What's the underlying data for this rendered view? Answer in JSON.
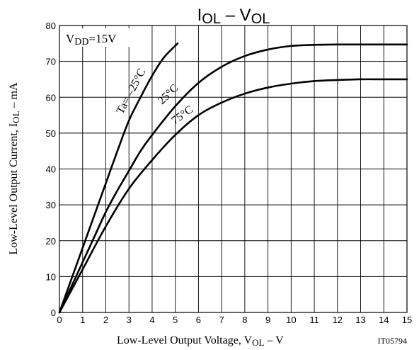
{
  "title": {
    "main": "I",
    "sub_1": "OL",
    "dash": " – V",
    "sub_2": "OL"
  },
  "y_axis_label": {
    "pre": "Low-Level Output Current, I",
    "sub": "OL",
    "post": " – mA"
  },
  "x_axis_label": {
    "pre": "Low-Level Output Voltage, V",
    "sub": "OL",
    "post": " – V"
  },
  "figure_code": "IT05794",
  "vdd_label": {
    "pre": "V",
    "sub": "DD",
    "post": "=15V"
  },
  "curve_labels": [
    "Ta= –25°C",
    "25°C",
    "75°C"
  ],
  "colors": {
    "line": "#000000",
    "grid": "#000000",
    "background": "#ffffff"
  },
  "chart_data": {
    "type": "line",
    "xlabel": "Low-Level Output Voltage, VOL – V",
    "ylabel": "Low-Level Output Current, IOL – mA",
    "xlim": [
      0,
      15
    ],
    "ylim": [
      0,
      80
    ],
    "x_ticks": [
      0,
      1,
      2,
      3,
      4,
      5,
      6,
      7,
      8,
      9,
      10,
      11,
      12,
      13,
      14,
      15
    ],
    "y_ticks": [
      0,
      10,
      20,
      30,
      40,
      50,
      60,
      70,
      80
    ],
    "grid": true,
    "series": [
      {
        "name": "Ta= –25°C",
        "x": [
          0,
          0.5,
          1,
          1.5,
          2,
          2.5,
          3,
          3.5,
          4,
          4.5,
          5.1
        ],
        "y": [
          0,
          9,
          18,
          27,
          36,
          45,
          53.5,
          60,
          66,
          71,
          75
        ]
      },
      {
        "name": "25°C",
        "x": [
          0,
          0.5,
          1,
          1.5,
          2,
          2.5,
          3,
          3.5,
          4,
          5,
          6,
          7,
          8,
          9,
          10,
          11,
          12,
          13,
          14,
          15
        ],
        "y": [
          0,
          7,
          14,
          21,
          28,
          34,
          39.5,
          45,
          49.5,
          57.5,
          64,
          68.5,
          71.5,
          73.3,
          74.3,
          74.6,
          74.7,
          74.7,
          74.7,
          74.7
        ]
      },
      {
        "name": "75°C",
        "x": [
          0,
          1,
          2,
          3,
          4,
          5,
          6,
          7,
          8,
          9,
          10,
          11,
          12,
          13,
          14,
          15
        ],
        "y": [
          0,
          12,
          24,
          34.5,
          42.5,
          49.5,
          55,
          58.5,
          61,
          62.7,
          63.8,
          64.5,
          64.8,
          65,
          65,
          65
        ]
      }
    ]
  }
}
